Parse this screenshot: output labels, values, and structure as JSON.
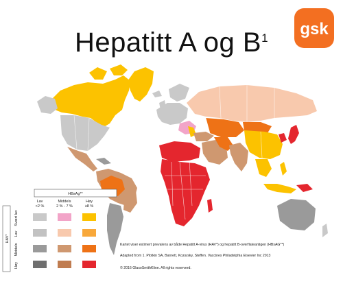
{
  "title": {
    "main": "Hepatitt A og B",
    "sup": "1"
  },
  "logo": {
    "text": "gsk",
    "color": "#f36f21"
  },
  "legend": {
    "hbsag_title": "HBsAg**",
    "hav_title": "HAV*",
    "columns": [
      {
        "label": "Lav",
        "range": "<2 %"
      },
      {
        "label": "Middels",
        "range": "2 % - 7 %"
      },
      {
        "label": "Høy",
        "range": "≥8 %"
      }
    ],
    "rows": [
      "Svært lav",
      "Lav",
      "Middels",
      "Høy"
    ],
    "colors": [
      [
        "#c9c9c9",
        "#f2a4c8",
        "#fcc200"
      ],
      [
        "#c2c2c2",
        "#f8c9ad",
        "#f8a83a"
      ],
      [
        "#9a9a9a",
        "#cf9870",
        "#ee7216"
      ],
      [
        "#6f6f6f",
        "#c07c50",
        "#e4262e"
      ]
    ]
  },
  "footnotes": [
    "Kartet viser estimert prevalens av både Hepatitt A-virus (HAV*) og hepatitt B-overflateantigen (HBsAG**)",
    "Adapted from 1. Plotkin SA, Barnett, Kozarsky, Steffen. Vaccines Philadelphia Elsevier Inc 2013",
    "© 2016 GlaxoSmithKline. All rights reserverd."
  ]
}
